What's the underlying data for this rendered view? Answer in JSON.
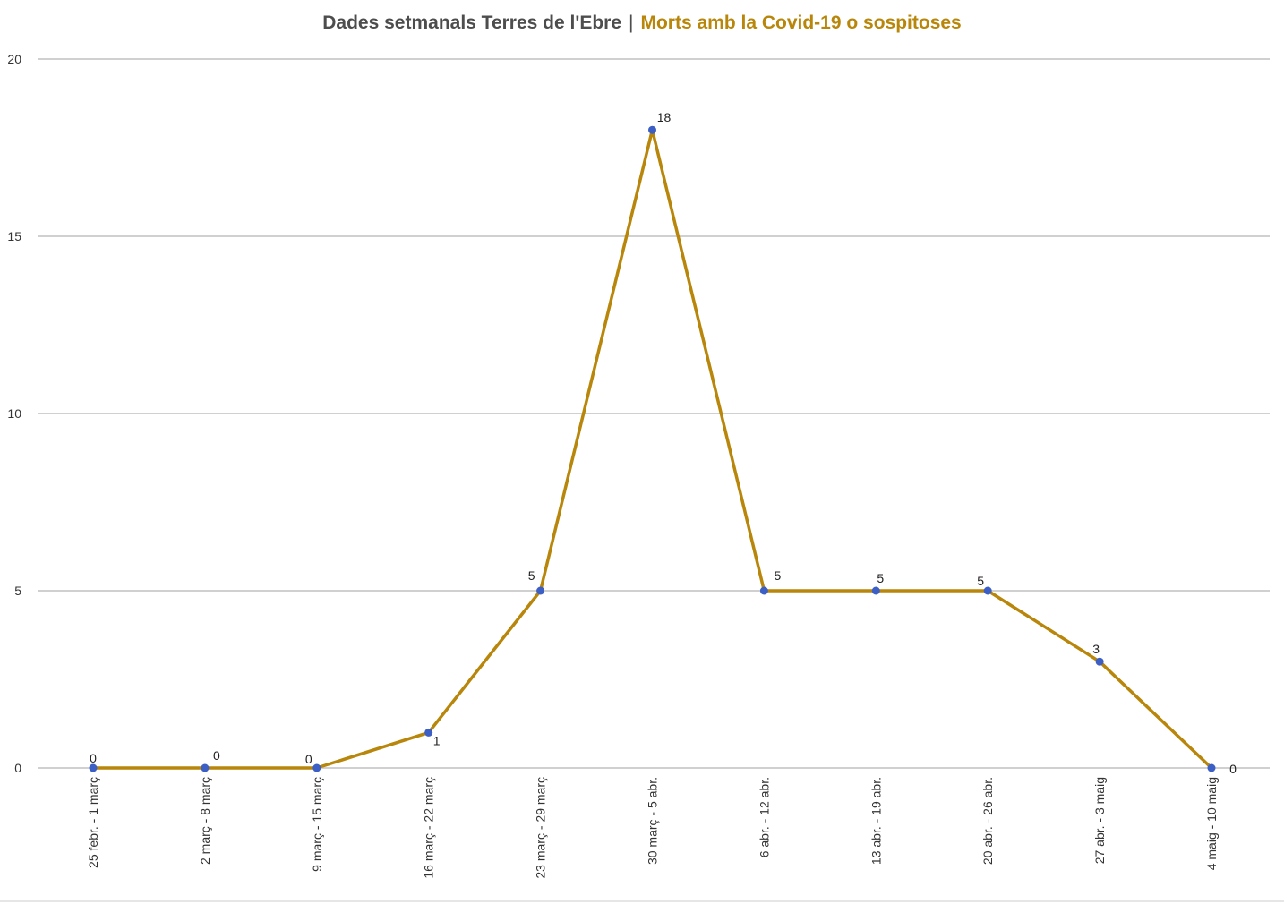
{
  "chart_data": {
    "type": "line",
    "title_part1": "Dades setmanals Terres de l'Ebre",
    "title_separator": "|",
    "title_part2": "Morts amb la Covid-19 o sospitoses",
    "categories": [
      "25 febr. - 1 març",
      "2 març - 8 març",
      "9 març - 15 març",
      "16 març - 22 març",
      "23 març - 29 març",
      "30 març - 5 abr.",
      "6 abr. - 12 abr.",
      "13 abr. - 19 abr.",
      "20 abr. - 26 abr.",
      "27 abr. - 3 maig",
      "4 maig - 10 maig"
    ],
    "series": [
      {
        "values": [
          0,
          0,
          0,
          1,
          5,
          18,
          5,
          5,
          5,
          3,
          0
        ]
      }
    ],
    "ylim": [
      0,
      20
    ],
    "yticks": [
      "0",
      "5",
      "10",
      "15",
      "20"
    ],
    "grid": true,
    "legend": false,
    "colors": {
      "line": "#b8860b",
      "marker": "#3b5fc4",
      "grid": "#d0d0d0",
      "title_accent": "#b8860b"
    }
  }
}
